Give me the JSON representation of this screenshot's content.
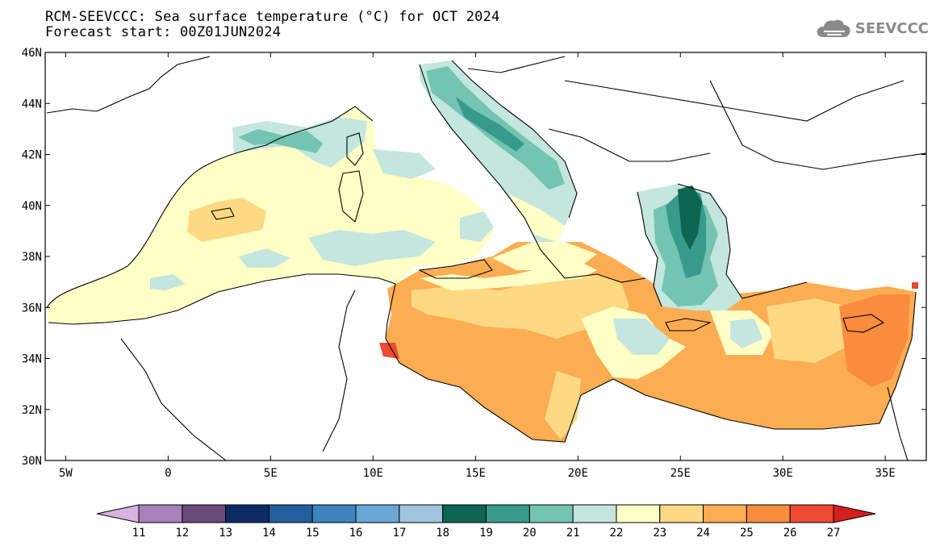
{
  "title": {
    "line1": "RCM-SEEVCCC: Sea surface temperature (°C) for OCT 2024",
    "line2": "Forecast start: 00Z01JUN2024"
  },
  "logo": {
    "text": "SEEVCCC",
    "icon": "cloud-icon",
    "color": "#8a8a8a"
  },
  "map": {
    "lon_range": [
      -6,
      37
    ],
    "lat_range": [
      30,
      46
    ],
    "y_ticks": [
      {
        "value": 46,
        "label": "46N"
      },
      {
        "value": 44,
        "label": "44N"
      },
      {
        "value": 42,
        "label": "42N"
      },
      {
        "value": 40,
        "label": "40N"
      },
      {
        "value": 38,
        "label": "38N"
      },
      {
        "value": 36,
        "label": "36N"
      },
      {
        "value": 34,
        "label": "34N"
      },
      {
        "value": 32,
        "label": "32N"
      },
      {
        "value": 30,
        "label": "30N"
      }
    ],
    "x_ticks": [
      {
        "value": -5,
        "label": "5W"
      },
      {
        "value": 0,
        "label": "0"
      },
      {
        "value": 5,
        "label": "5E"
      },
      {
        "value": 10,
        "label": "10E"
      },
      {
        "value": 15,
        "label": "15E"
      },
      {
        "value": 20,
        "label": "20E"
      },
      {
        "value": 25,
        "label": "25E"
      },
      {
        "value": 30,
        "label": "30E"
      },
      {
        "value": 35,
        "label": "35E"
      }
    ]
  },
  "colorbar": {
    "labels": [
      "11",
      "12",
      "13",
      "14",
      "15",
      "16",
      "17",
      "18",
      "19",
      "20",
      "21",
      "22",
      "23",
      "24",
      "25",
      "26",
      "27"
    ],
    "colors": [
      "#d8b3e0",
      "#a880bb",
      "#6a4a78",
      "#0c2b63",
      "#235f9e",
      "#3c85bf",
      "#69a7d4",
      "#9fc6de",
      "#0d6652",
      "#389a8a",
      "#73c4b0",
      "#c3e6de",
      "#ffffc6",
      "#fed983",
      "#fcad52",
      "#fa8c3d",
      "#ef4a33",
      "#d71e1e"
    ]
  }
}
